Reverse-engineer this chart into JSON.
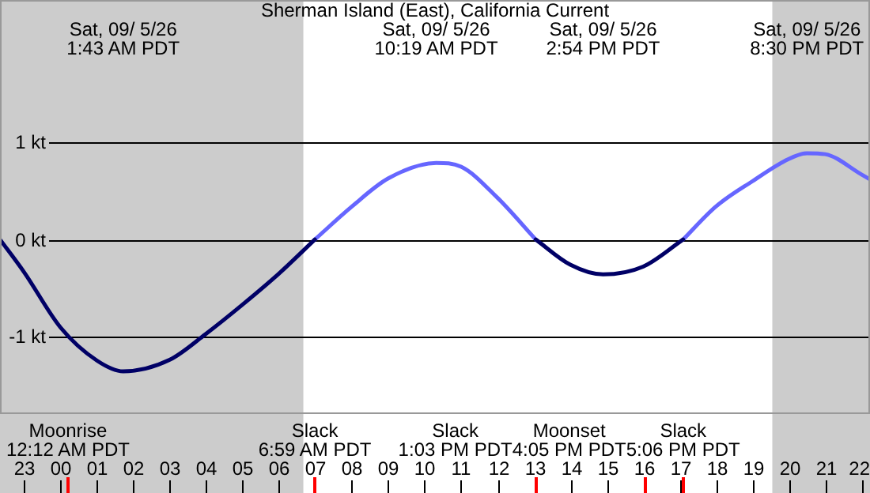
{
  "chart_data": {
    "type": "line",
    "title": "Sherman Island (East), California Current",
    "xlim": [
      "--09-04T22:20",
      "--09-05T22:14"
    ],
    "xticks": [
      {
        "value": "--09-04T23:00",
        "label": "23"
      },
      {
        "value": "--09-05T00:00",
        "label": "00"
      },
      {
        "value": "--09-05T01:00",
        "label": "01"
      },
      {
        "value": "--09-05T02:00",
        "label": "02"
      },
      {
        "value": "--09-05T03:00",
        "label": "03"
      },
      {
        "value": "--09-05T04:00",
        "label": "04"
      },
      {
        "value": "--09-05T05:00",
        "label": "05"
      },
      {
        "value": "--09-05T06:00",
        "label": "06"
      },
      {
        "value": "--09-05T07:00",
        "label": "07"
      },
      {
        "value": "--09-05T08:00",
        "label": "08"
      },
      {
        "value": "--09-05T09:00",
        "label": "09"
      },
      {
        "value": "--09-05T10:00",
        "label": "10"
      },
      {
        "value": "--09-05T11:00",
        "label": "11"
      },
      {
        "value": "--09-05T12:00",
        "label": "12"
      },
      {
        "value": "--09-05T13:00",
        "label": "13"
      },
      {
        "value": "--09-05T14:00",
        "label": "14"
      },
      {
        "value": "--09-05T15:00",
        "label": "15"
      },
      {
        "value": "--09-05T16:00",
        "label": "16"
      },
      {
        "value": "--09-05T17:00",
        "label": "17"
      },
      {
        "value": "--09-05T18:00",
        "label": "18"
      },
      {
        "value": "--09-05T19:00",
        "label": "19"
      },
      {
        "value": "--09-05T20:00",
        "label": "20"
      },
      {
        "value": "--09-05T21:00",
        "label": "21"
      },
      {
        "value": "--09-05T22:00",
        "label": "22"
      }
    ],
    "ylim": [
      -1.8,
      2.47
    ],
    "yticks": [
      {
        "value": 1,
        "label": "1 kt"
      },
      {
        "value": 0,
        "label": "0 kt"
      },
      {
        "value": -1,
        "label": "-1 kt"
      }
    ],
    "grid": "y",
    "marker": "none",
    "line_style": "solid",
    "series": [
      {
        "color": "#000066",
        "x": [
          "--09-04T22:20",
          "--09-04T23:00",
          "--09-05T00:00",
          "--09-05T01:00",
          "--09-05T01:43",
          "--09-05T03:00",
          "--09-05T04:00",
          "--09-05T05:00",
          "--09-05T06:00",
          "--09-05T06:59",
          "--09-05T10:00",
          "--09-05T13:03",
          "--09-05T14:00",
          "--09-05T14:54",
          "--09-05T16:00",
          "--09-05T17:06"
        ],
        "values": [
          0,
          -0.34,
          -0.91,
          -1.25,
          -1.36,
          -1.24,
          -0.97,
          -0.67,
          -0.35,
          0,
          null,
          0,
          -0.26,
          -0.36,
          -0.28,
          0
        ]
      },
      {
        "color": "#6666ff",
        "x": [
          "--09-05T06:59",
          "--09-05T08:00",
          "--09-05T09:00",
          "--09-05T10:19",
          "--09-05T11:00",
          "--09-05T12:00",
          "--09-05T13:03",
          "--09-05T15:00",
          "--09-05T17:06",
          "--09-05T18:00",
          "--09-05T19:00",
          "--09-05T20:00",
          "--09-05T20:30",
          "--09-05T21:00",
          "--09-05T22:00",
          "--09-05T22:14"
        ],
        "values": [
          0,
          0.34,
          0.63,
          0.79,
          0.75,
          0.43,
          0,
          null,
          0,
          0.34,
          0.6,
          0.83,
          0.89,
          0.88,
          0.67,
          0.62
        ]
      }
    ],
    "bands": [
      {
        "axis": "x",
        "from": "--09-04T22:20",
        "to": "--09-05T06:40",
        "color": "#cccccc"
      },
      {
        "axis": "x",
        "from": "--09-05T19:33",
        "to": "--09-05T22:14",
        "color": "#cccccc"
      }
    ],
    "ref_lines": [
      {
        "axis": "x",
        "value": "--09-05T00:12",
        "label": "Moonrise\n12:12 AM PDT",
        "color": "#ff0000"
      },
      {
        "axis": "x",
        "value": "--09-05T06:59",
        "label": "Slack\n6:59 AM PDT",
        "color": "#ff0000"
      },
      {
        "axis": "x",
        "value": "--09-05T13:03",
        "label": "Slack\n1:03 PM PDT",
        "color": "#ff0000"
      },
      {
        "axis": "x",
        "value": "--09-05T16:05",
        "label": "Moonset\n4:05 PM PDT",
        "color": "#ff0000"
      },
      {
        "axis": "x",
        "value": "--09-05T17:06",
        "label": "Slack\n5:06 PM PDT",
        "color": "#ff0000"
      }
    ],
    "annotations": [
      "Sat, 09/ 5/26\n1:43 AM PDT",
      "Sat, 09/ 5/26\n10:19 AM PDT",
      "Sat, 09/ 5/26\n2:54 PM PDT",
      "Sat, 09/ 5/26\n8:30 PM PDT"
    ]
  }
}
